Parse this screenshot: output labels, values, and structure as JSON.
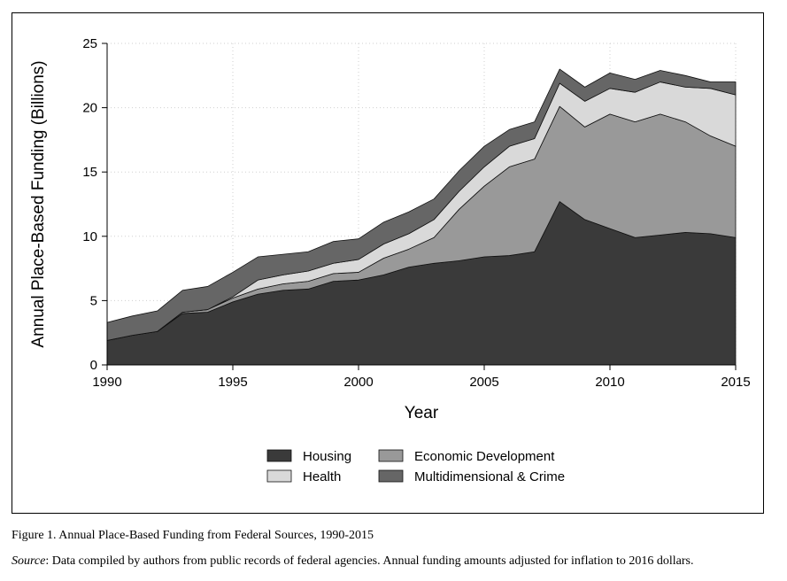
{
  "figure_caption": "Figure 1. Annual Place-Based Funding from Federal Sources, 1990-2015",
  "source_label": "Source",
  "source_text": ": Data compiled by authors from public records of federal agencies. Annual funding amounts adjusted for inflation to 2016 dollars.",
  "chart_data": {
    "type": "area",
    "stacked": true,
    "title": "",
    "xlabel": "Year",
    "ylabel": "Annual Place-Based Funding (Billions)",
    "xlim": [
      1990,
      2015
    ],
    "ylim": [
      0,
      25
    ],
    "xticks": [
      1990,
      1995,
      2000,
      2005,
      2010,
      2015
    ],
    "yticks": [
      0,
      5,
      10,
      15,
      20,
      25
    ],
    "grid": true,
    "legend_position": "bottom",
    "x": [
      1990,
      1991,
      1992,
      1993,
      1994,
      1995,
      1996,
      1997,
      1998,
      1999,
      2000,
      2001,
      2002,
      2003,
      2004,
      2005,
      2006,
      2007,
      2008,
      2009,
      2010,
      2011,
      2012,
      2013,
      2014,
      2015
    ],
    "series": [
      {
        "name": "Housing",
        "color": "#3a3a3a",
        "values": [
          1.9,
          2.3,
          2.6,
          4.0,
          4.1,
          4.9,
          5.5,
          5.8,
          5.9,
          6.5,
          6.6,
          7.0,
          7.6,
          7.9,
          8.1,
          8.4,
          8.5,
          8.8,
          12.7,
          11.3,
          10.6,
          9.9,
          10.1,
          10.3,
          10.2,
          9.9
        ]
      },
      {
        "name": "Economic Development",
        "color": "#999999",
        "values": [
          0,
          0,
          0,
          0.1,
          0.2,
          0.3,
          0.4,
          0.5,
          0.6,
          0.6,
          0.6,
          1.3,
          1.4,
          2.0,
          4.0,
          5.5,
          6.9,
          7.2,
          7.4,
          7.2,
          8.9,
          9.0,
          9.4,
          8.6,
          7.6,
          7.1
        ]
      },
      {
        "name": "Health",
        "color": "#d9d9d9",
        "values": [
          0,
          0,
          0,
          0,
          0,
          0.1,
          0.7,
          0.7,
          0.8,
          0.8,
          1.0,
          1.1,
          1.2,
          1.4,
          1.4,
          1.5,
          1.6,
          1.6,
          1.8,
          2.0,
          2.0,
          2.3,
          2.5,
          2.7,
          3.7,
          4.0
        ]
      },
      {
        "name": "Multidimensional & Crime",
        "color": "#666666",
        "values": [
          1.4,
          1.5,
          1.6,
          1.7,
          1.8,
          1.9,
          1.8,
          1.6,
          1.5,
          1.7,
          1.6,
          1.7,
          1.7,
          1.6,
          1.6,
          1.6,
          1.3,
          1.3,
          1.1,
          1.1,
          1.2,
          1.0,
          0.9,
          0.9,
          0.5,
          1.0
        ]
      }
    ]
  }
}
